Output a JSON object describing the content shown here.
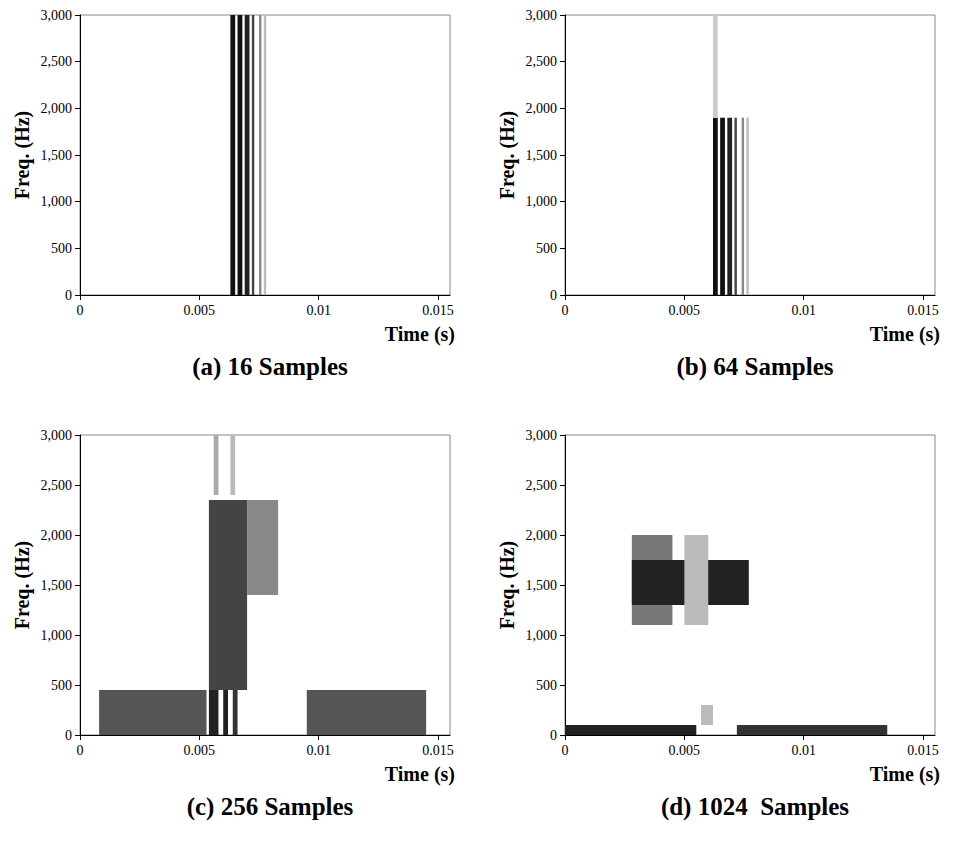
{
  "chart_data": [
    {
      "type": "spectrogram",
      "title": "(a) 16 Samples",
      "x_label": "Time (s)",
      "y_label": "Freq. (Hz)",
      "xlim": [
        0,
        0.0155
      ],
      "xticks": [
        0,
        0.005,
        0.01,
        0.015
      ],
      "ylim": [
        0,
        3000
      ],
      "yticks": [
        0,
        500,
        1000,
        1500,
        2000,
        2500,
        3000
      ],
      "blocks": [
        [
          0.0063,
          0.0065,
          0,
          3000
        ],
        [
          0.0066,
          0.0068,
          0,
          3000
        ],
        [
          0.0069,
          0.0071,
          0,
          3000
        ],
        [
          0.0072,
          0.0073,
          0,
          3000
        ],
        [
          0.0075,
          0.0076,
          0,
          3000
        ],
        [
          0.0077,
          0.0078,
          0,
          3000
        ]
      ],
      "colors": [
        "#111111",
        "#111111",
        "#222222",
        "#444444",
        "#888888",
        "#bbbbbb"
      ]
    },
    {
      "type": "spectrogram",
      "title": "(b) 64 Samples",
      "x_label": "Time (s)",
      "y_label": "Freq. (Hz)",
      "xlim": [
        0,
        0.0155
      ],
      "xticks": [
        0,
        0.005,
        0.01,
        0.015
      ],
      "ylim": [
        0,
        3000
      ],
      "yticks": [
        0,
        500,
        1000,
        1500,
        2000,
        2500,
        3000
      ],
      "blocks": [
        [
          0.0062,
          0.0064,
          0,
          1900
        ],
        [
          0.0065,
          0.0067,
          0,
          1900
        ],
        [
          0.0068,
          0.007,
          0,
          1900
        ],
        [
          0.0071,
          0.0072,
          0,
          1900
        ],
        [
          0.0074,
          0.0075,
          0,
          1900
        ],
        [
          0.0076,
          0.0077,
          0,
          1900
        ],
        [
          0.0062,
          0.0064,
          1900,
          3000
        ]
      ],
      "colors": [
        "#111111",
        "#111111",
        "#222222",
        "#444444",
        "#888888",
        "#bbbbbb",
        "#cccccc"
      ]
    },
    {
      "type": "spectrogram",
      "title": "(c) 256 Samples",
      "x_label": "Time (s)",
      "y_label": "Freq. (Hz)",
      "xlim": [
        0,
        0.0155
      ],
      "xticks": [
        0,
        0.005,
        0.01,
        0.015
      ],
      "ylim": [
        0,
        3000
      ],
      "yticks": [
        0,
        500,
        1000,
        1500,
        2000,
        2500,
        3000
      ],
      "blocks": [
        [
          0.0008,
          0.0053,
          0,
          450
        ],
        [
          0.0095,
          0.0145,
          0,
          450
        ],
        [
          0.0054,
          0.007,
          450,
          2350
        ],
        [
          0.007,
          0.0083,
          1400,
          2350
        ],
        [
          0.0054,
          0.0058,
          0,
          450
        ],
        [
          0.006,
          0.0062,
          0,
          450
        ],
        [
          0.0064,
          0.0066,
          0,
          450
        ],
        [
          0.0056,
          0.0058,
          2400,
          3000
        ],
        [
          0.0063,
          0.0065,
          2400,
          3000
        ]
      ],
      "colors": [
        "#555555",
        "#555555",
        "#444444",
        "#888888",
        "#222222",
        "#222222",
        "#333333",
        "#aaaaaa",
        "#bbbbbb"
      ]
    },
    {
      "type": "spectrogram",
      "title": "(d) 1024  Samples",
      "x_label": "Time (s)",
      "y_label": "Freq. (Hz)",
      "xlim": [
        0,
        0.0155
      ],
      "xticks": [
        0,
        0.005,
        0.01,
        0.015
      ],
      "ylim": [
        0,
        3000
      ],
      "yticks": [
        0,
        500,
        1000,
        1500,
        2000,
        2500,
        3000
      ],
      "blocks": [
        [
          0,
          0.0055,
          0,
          100
        ],
        [
          0.0072,
          0.0135,
          0,
          100
        ],
        [
          0.0028,
          0.0045,
          1100,
          2000
        ],
        [
          0.0028,
          0.0077,
          1300,
          1750
        ],
        [
          0.005,
          0.006,
          1100,
          2000
        ],
        [
          0.0057,
          0.0062,
          100,
          300
        ]
      ],
      "colors": [
        "#222222",
        "#333333",
        "#777777",
        "#222222",
        "#bbbbbb",
        "#bbbbbb"
      ]
    }
  ]
}
